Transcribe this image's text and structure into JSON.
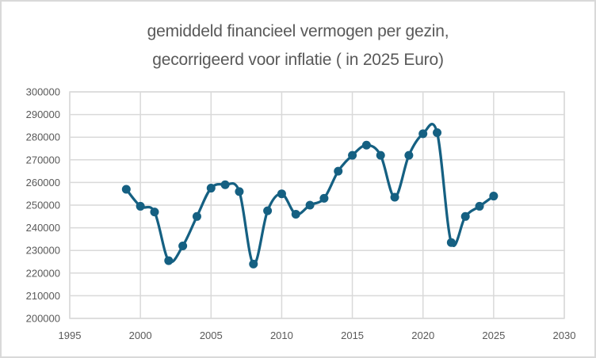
{
  "chart": {
    "title_line1": "gemiddeld financieel vermogen per gezin,",
    "title_line2": "gecorrigeerd voor inflatie ( in 2025 Euro)"
  },
  "chart_data": {
    "type": "line",
    "title": "gemiddeld financieel vermogen per gezin, gecorrigeerd voor inflatie ( in 2025 Euro)",
    "xlabel": "",
    "ylabel": "",
    "x": [
      1999,
      2000,
      2001,
      2002,
      2003,
      2004,
      2005,
      2006,
      2007,
      2008,
      2009,
      2010,
      2011,
      2012,
      2013,
      2014,
      2015,
      2016,
      2017,
      2018,
      2019,
      2020,
      2021,
      2022,
      2023,
      2024,
      2025
    ],
    "values": [
      257000,
      249500,
      247000,
      225500,
      232000,
      245000,
      257500,
      259000,
      256000,
      224000,
      247500,
      255000,
      246000,
      250000,
      253000,
      265000,
      272000,
      276500,
      272000,
      253500,
      272000,
      281500,
      282000,
      233500,
      245000,
      249500,
      254000
    ],
    "xlim": [
      1995,
      2030
    ],
    "ylim": [
      200000,
      300000
    ],
    "x_ticks": [
      1995,
      2000,
      2005,
      2010,
      2015,
      2020,
      2025,
      2030
    ],
    "y_ticks": [
      200000,
      210000,
      220000,
      230000,
      240000,
      250000,
      260000,
      270000,
      280000,
      290000,
      300000
    ],
    "grid": true,
    "legend": false,
    "smooth_line": true,
    "marker": "circle",
    "colors": {
      "line": "#156082",
      "marker": "#156082",
      "grid": "#d9d9d9",
      "plot_border": "#d9d9d9",
      "axis_text": "#595959",
      "title_text": "#595959",
      "background": "#ffffff"
    }
  }
}
